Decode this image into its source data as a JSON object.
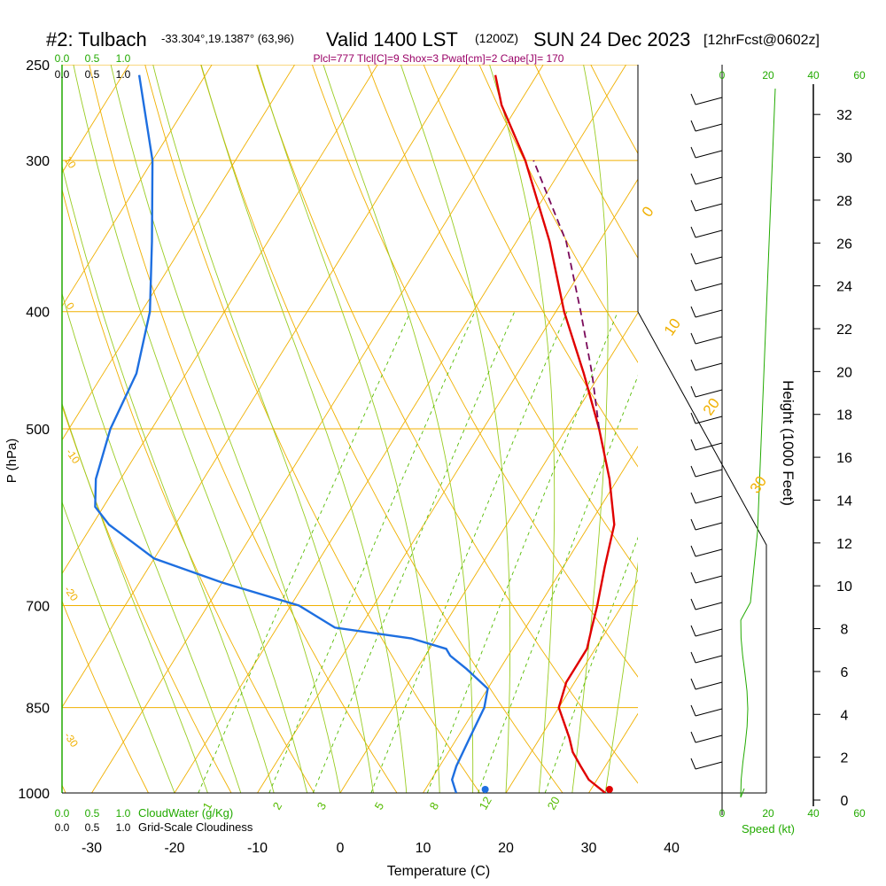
{
  "header": {
    "station": "#2: Tulbach",
    "coords": "-33.304°,19.1387° (63,96)",
    "valid": "Valid 1400 LST",
    "zulu": "(1200Z)",
    "date": "SUN 24 Dec 2023",
    "forecast": "[12hrFcst@0602z]",
    "indices": "Plcl=777 Tlcl[C]=9 Shox=3 Pwat[cm]=2 Cape[J]= 170"
  },
  "axes": {
    "ylabel": "P (hPa)",
    "xlabel": "Temperature (C)",
    "height_label": "Height (1000 Feet)",
    "speed_label": "Speed (kt)",
    "cloudwater_label": "CloudWater (g/Kg)",
    "cloudiness_label": "Grid-Scale Cloudiness",
    "cloud_ticks": [
      "0.0",
      "0.5",
      "1.0"
    ]
  },
  "colors": {
    "temperature": "#e00000",
    "dewpoint": "#1e6fe0",
    "parcel": "#7a0a5a",
    "isotherm": "#f0b000",
    "mixing_ratio": "#55bb00",
    "dry_adiabat": "#f0b000",
    "moist_adiabat": "#99cc22",
    "label_green": "#22aa00",
    "indices": "#990066"
  },
  "chart_data": {
    "type": "skew-t",
    "pressure_levels": [
      "250",
      "300",
      "400",
      "500",
      "700",
      "850",
      "1000"
    ],
    "temperature_ticks": [
      "-30",
      "-20",
      "-10",
      "0",
      "10",
      "20",
      "30",
      "40"
    ],
    "height_ticks": [
      "0",
      "2",
      "4",
      "6",
      "8",
      "10",
      "12",
      "14",
      "16",
      "18",
      "20",
      "22",
      "24",
      "26",
      "28",
      "30",
      "32"
    ],
    "speed_ticks": [
      "0",
      "20",
      "40",
      "60"
    ],
    "isotherm_labels": [
      "0",
      "10",
      "20",
      "30"
    ],
    "dry_adiabat_labels": [
      "10",
      "0",
      "-10",
      "-20",
      "-30"
    ],
    "mixing_ratio_labels": [
      "1",
      "2",
      "3",
      "5",
      "8",
      "12",
      "20"
    ],
    "temperature_profile": [
      {
        "p": 1000,
        "t": 32
      },
      {
        "p": 975,
        "t": 29
      },
      {
        "p": 950,
        "t": 27
      },
      {
        "p": 925,
        "t": 25
      },
      {
        "p": 900,
        "t": 23.5
      },
      {
        "p": 850,
        "t": 20
      },
      {
        "p": 810,
        "t": 19
      },
      {
        "p": 790,
        "t": 19
      },
      {
        "p": 760,
        "t": 19
      },
      {
        "p": 730,
        "t": 18
      },
      {
        "p": 700,
        "t": 17
      },
      {
        "p": 650,
        "t": 15
      },
      {
        "p": 600,
        "t": 13
      },
      {
        "p": 550,
        "t": 9
      },
      {
        "p": 500,
        "t": 4
      },
      {
        "p": 450,
        "t": -2
      },
      {
        "p": 400,
        "t": -9
      },
      {
        "p": 350,
        "t": -16
      },
      {
        "p": 300,
        "t": -25
      },
      {
        "p": 270,
        "t": -32
      },
      {
        "p": 255,
        "t": -35
      }
    ],
    "dewpoint_profile": [
      {
        "p": 1000,
        "t": 14
      },
      {
        "p": 975,
        "t": 12.5
      },
      {
        "p": 950,
        "t": 12
      },
      {
        "p": 900,
        "t": 11.5
      },
      {
        "p": 850,
        "t": 11
      },
      {
        "p": 820,
        "t": 10
      },
      {
        "p": 790,
        "t": 6
      },
      {
        "p": 770,
        "t": 3
      },
      {
        "p": 760,
        "t": 2
      },
      {
        "p": 745,
        "t": -3
      },
      {
        "p": 730,
        "t": -13
      },
      {
        "p": 700,
        "t": -19
      },
      {
        "p": 670,
        "t": -30
      },
      {
        "p": 640,
        "t": -40
      },
      {
        "p": 600,
        "t": -48
      },
      {
        "p": 580,
        "t": -51
      },
      {
        "p": 550,
        "t": -53
      },
      {
        "p": 500,
        "t": -55
      },
      {
        "p": 450,
        "t": -56
      },
      {
        "p": 400,
        "t": -59
      },
      {
        "p": 350,
        "t": -64
      },
      {
        "p": 300,
        "t": -70
      },
      {
        "p": 255,
        "t": -78
      }
    ],
    "parcel_profile": [
      {
        "p": 500,
        "t": 4
      },
      {
        "p": 450,
        "t": -1
      },
      {
        "p": 400,
        "t": -7
      },
      {
        "p": 350,
        "t": -14
      },
      {
        "p": 300,
        "t": -24
      }
    ],
    "surface_points": {
      "temperature": 32.5,
      "dewpoint": 17.5
    },
    "height_axis": {
      "min": 0,
      "max": 33
    }
  }
}
